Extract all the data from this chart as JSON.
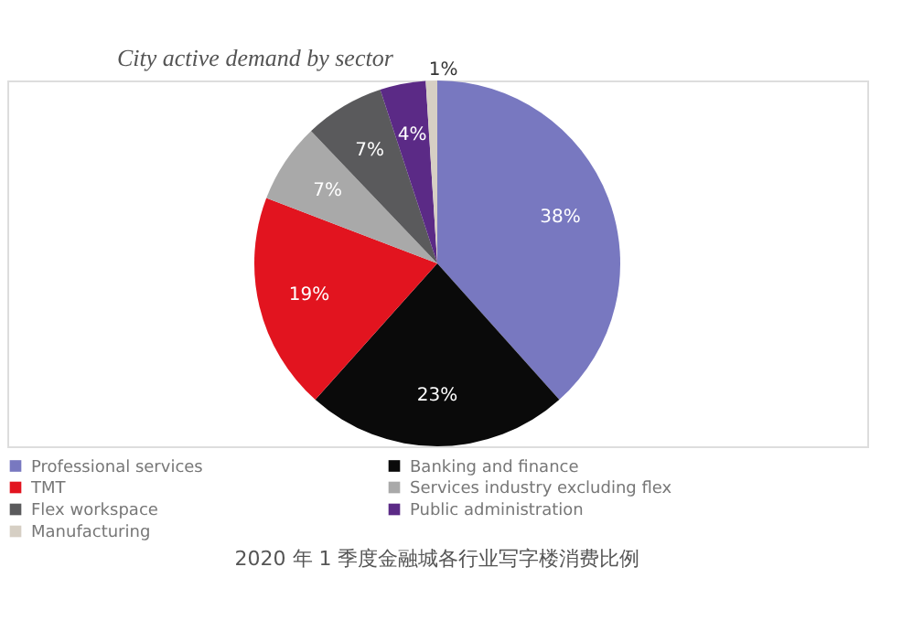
{
  "chart_data": {
    "type": "pie",
    "title": "City active demand by sector",
    "categories": [
      "Professional services",
      "Banking and finance",
      "TMT",
      "Services industry excluding flex",
      "Flex workspace",
      "Public administration",
      "Manufacturing"
    ],
    "values": [
      38,
      23,
      19,
      7,
      7,
      4,
      1
    ],
    "colors": [
      "#7878c0",
      "#0a0a0a",
      "#e2141f",
      "#a9a9a9",
      "#5a5a5c",
      "#5b2a86",
      "#d6cfc4"
    ],
    "value_labels": [
      "38%",
      "23%",
      "19%",
      "7%",
      "7%",
      "4%",
      "1%"
    ],
    "legend": "bottom",
    "annotations": [
      "2020 年 1 季度金融城各行业写字楼消费比例"
    ]
  }
}
